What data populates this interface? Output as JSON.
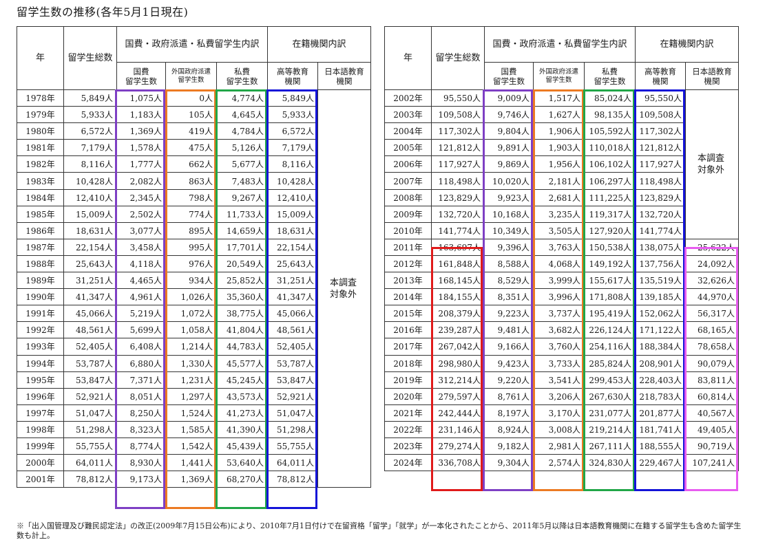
{
  "title": "留学生数の推移(各年5月1日現在)",
  "headers": {
    "year": "年",
    "total": "留学生総数",
    "breakdown": "国費・政府派遣・私費留学生内訳",
    "institution": "在籍機関内訳",
    "gov": "国費\n留学生数",
    "foreign": "外国政府派遣\n留学生数",
    "private": "私費\n留学生数",
    "higher": "高等教育\n機関",
    "japanese": "日本語教育\n機関"
  },
  "not_surveyed": "本調査\n対象外",
  "left_rows": [
    {
      "year": "1978年",
      "total": "5,849人",
      "gov": "1,075人",
      "foreign": "0人",
      "private": "4,774人",
      "higher": "5,849人"
    },
    {
      "year": "1979年",
      "total": "5,933人",
      "gov": "1,183人",
      "foreign": "105人",
      "private": "4,645人",
      "higher": "5,933人"
    },
    {
      "year": "1980年",
      "total": "6,572人",
      "gov": "1,369人",
      "foreign": "419人",
      "private": "4,784人",
      "higher": "6,572人"
    },
    {
      "year": "1981年",
      "total": "7,179人",
      "gov": "1,578人",
      "foreign": "475人",
      "private": "5,126人",
      "higher": "7,179人"
    },
    {
      "year": "1982年",
      "total": "8,116人",
      "gov": "1,777人",
      "foreign": "662人",
      "private": "5,677人",
      "higher": "8,116人"
    },
    {
      "year": "1983年",
      "total": "10,428人",
      "gov": "2,082人",
      "foreign": "863人",
      "private": "7,483人",
      "higher": "10,428人"
    },
    {
      "year": "1984年",
      "total": "12,410人",
      "gov": "2,345人",
      "foreign": "798人",
      "private": "9,267人",
      "higher": "12,410人"
    },
    {
      "year": "1985年",
      "total": "15,009人",
      "gov": "2,502人",
      "foreign": "774人",
      "private": "11,733人",
      "higher": "15,009人"
    },
    {
      "year": "1986年",
      "total": "18,631人",
      "gov": "3,077人",
      "foreign": "895人",
      "private": "14,659人",
      "higher": "18,631人"
    },
    {
      "year": "1987年",
      "total": "22,154人",
      "gov": "3,458人",
      "foreign": "995人",
      "private": "17,701人",
      "higher": "22,154人"
    },
    {
      "year": "1988年",
      "total": "25,643人",
      "gov": "4,118人",
      "foreign": "976人",
      "private": "20,549人",
      "higher": "25,643人"
    },
    {
      "year": "1989年",
      "total": "31,251人",
      "gov": "4,465人",
      "foreign": "934人",
      "private": "25,852人",
      "higher": "31,251人"
    },
    {
      "year": "1990年",
      "total": "41,347人",
      "gov": "4,961人",
      "foreign": "1,026人",
      "private": "35,360人",
      "higher": "41,347人"
    },
    {
      "year": "1991年",
      "total": "45,066人",
      "gov": "5,219人",
      "foreign": "1,072人",
      "private": "38,775人",
      "higher": "45,066人"
    },
    {
      "year": "1992年",
      "total": "48,561人",
      "gov": "5,699人",
      "foreign": "1,058人",
      "private": "41,804人",
      "higher": "48,561人"
    },
    {
      "year": "1993年",
      "total": "52,405人",
      "gov": "6,408人",
      "foreign": "1,214人",
      "private": "44,783人",
      "higher": "52,405人"
    },
    {
      "year": "1994年",
      "total": "53,787人",
      "gov": "6,880人",
      "foreign": "1,330人",
      "private": "45,577人",
      "higher": "53,787人"
    },
    {
      "year": "1995年",
      "total": "53,847人",
      "gov": "7,371人",
      "foreign": "1,231人",
      "private": "45,245人",
      "higher": "53,847人"
    },
    {
      "year": "1996年",
      "total": "52,921人",
      "gov": "8,051人",
      "foreign": "1,297人",
      "private": "43,573人",
      "higher": "52,921人"
    },
    {
      "year": "1997年",
      "total": "51,047人",
      "gov": "8,250人",
      "foreign": "1,524人",
      "private": "41,273人",
      "higher": "51,047人"
    },
    {
      "year": "1998年",
      "total": "51,298人",
      "gov": "8,323人",
      "foreign": "1,585人",
      "private": "41,390人",
      "higher": "51,298人"
    },
    {
      "year": "1999年",
      "total": "55,755人",
      "gov": "8,774人",
      "foreign": "1,542人",
      "private": "45,439人",
      "higher": "55,755人"
    },
    {
      "year": "2000年",
      "total": "64,011人",
      "gov": "8,930人",
      "foreign": "1,441人",
      "private": "53,640人",
      "higher": "64,011人"
    },
    {
      "year": "2001年",
      "total": "78,812人",
      "gov": "9,173人",
      "foreign": "1,369人",
      "private": "68,270人",
      "higher": "78,812人"
    }
  ],
  "right_rows": [
    {
      "year": "2002年",
      "total": "95,550人",
      "gov": "9,009人",
      "foreign": "1,517人",
      "private": "85,024人",
      "higher": "95,550人",
      "japanese": ""
    },
    {
      "year": "2003年",
      "total": "109,508人",
      "gov": "9,746人",
      "foreign": "1,627人",
      "private": "98,135人",
      "higher": "109,508人",
      "japanese": ""
    },
    {
      "year": "2004年",
      "total": "117,302人",
      "gov": "9,804人",
      "foreign": "1,906人",
      "private": "105,592人",
      "higher": "117,302人",
      "japanese": ""
    },
    {
      "year": "2005年",
      "total": "121,812人",
      "gov": "9,891人",
      "foreign": "1,903人",
      "private": "110,018人",
      "higher": "121,812人",
      "japanese": ""
    },
    {
      "year": "2006年",
      "total": "117,927人",
      "gov": "9,869人",
      "foreign": "1,956人",
      "private": "106,102人",
      "higher": "117,927人",
      "japanese": ""
    },
    {
      "year": "2007年",
      "total": "118,498人",
      "gov": "10,020人",
      "foreign": "2,181人",
      "private": "106,297人",
      "higher": "118,498人",
      "japanese": ""
    },
    {
      "year": "2008年",
      "total": "123,829人",
      "gov": "9,923人",
      "foreign": "2,681人",
      "private": "111,225人",
      "higher": "123,829人",
      "japanese": ""
    },
    {
      "year": "2009年",
      "total": "132,720人",
      "gov": "10,168人",
      "foreign": "3,235人",
      "private": "119,317人",
      "higher": "132,720人",
      "japanese": ""
    },
    {
      "year": "2010年",
      "total": "141,774人",
      "gov": "10,349人",
      "foreign": "3,505人",
      "private": "127,920人",
      "higher": "141,774人",
      "japanese": ""
    },
    {
      "year": "2011年",
      "total": "163,697人",
      "gov": "9,396人",
      "foreign": "3,763人",
      "private": "150,538人",
      "higher": "138,075人",
      "japanese": "25,622人"
    },
    {
      "year": "2012年",
      "total": "161,848人",
      "gov": "8,588人",
      "foreign": "4,068人",
      "private": "149,192人",
      "higher": "137,756人",
      "japanese": "24,092人"
    },
    {
      "year": "2013年",
      "total": "168,145人",
      "gov": "8,529人",
      "foreign": "3,999人",
      "private": "155,617人",
      "higher": "135,519人",
      "japanese": "32,626人"
    },
    {
      "year": "2014年",
      "total": "184,155人",
      "gov": "8,351人",
      "foreign": "3,996人",
      "private": "171,808人",
      "higher": "139,185人",
      "japanese": "44,970人"
    },
    {
      "year": "2015年",
      "total": "208,379人",
      "gov": "9,223人",
      "foreign": "3,737人",
      "private": "195,419人",
      "higher": "152,062人",
      "japanese": "56,317人"
    },
    {
      "year": "2016年",
      "total": "239,287人",
      "gov": "9,481人",
      "foreign": "3,682人",
      "private": "226,124人",
      "higher": "171,122人",
      "japanese": "68,165人"
    },
    {
      "year": "2017年",
      "total": "267,042人",
      "gov": "9,166人",
      "foreign": "3,760人",
      "private": "254,116人",
      "higher": "188,384人",
      "japanese": "78,658人"
    },
    {
      "year": "2018年",
      "total": "298,980人",
      "gov": "9,423人",
      "foreign": "3,733人",
      "private": "285,824人",
      "higher": "208,901人",
      "japanese": "90,079人"
    },
    {
      "year": "2019年",
      "total": "312,214人",
      "gov": "9,220人",
      "foreign": "3,541人",
      "private": "299,453人",
      "higher": "228,403人",
      "japanese": "83,811人"
    },
    {
      "year": "2020年",
      "total": "279,597人",
      "gov": "8,761人",
      "foreign": "3,206人",
      "private": "267,630人",
      "higher": "218,783人",
      "japanese": "60,814人"
    },
    {
      "year": "2021年",
      "total": "242,444人",
      "gov": "8,197人",
      "foreign": "3,170人",
      "private": "231,077人",
      "higher": "201,877人",
      "japanese": "40,567人"
    },
    {
      "year": "2022年",
      "total": "231,146人",
      "gov": "8,924人",
      "foreign": "3,008人",
      "private": "219,214人",
      "higher": "181,741人",
      "japanese": "49,405人"
    },
    {
      "year": "2023年",
      "total": "279,274人",
      "gov": "9,182人",
      "foreign": "2,981人",
      "private": "267,111人",
      "higher": "188,555人",
      "japanese": "90,719人"
    },
    {
      "year": "2024年",
      "total": "336,708人",
      "gov": "9,304人",
      "foreign": "2,574人",
      "private": "324,830人",
      "higher": "229,467人",
      "japanese": "107,241人"
    }
  ],
  "highlight_colors": {
    "gov": "#7e3fc4",
    "foreign": "#ec7a22",
    "private": "#21a647",
    "higher": "#1313d8",
    "total": "#e01a1a",
    "japanese": "#e85cf0"
  },
  "footnote": "※「出入国管理及び難民認定法」の改正(2009年7月15日公布)により、2010年7月1日付けで在留資格「留学」「就学」が一本化されたことから、2011年5月以降は日本語教育機関に在籍する留学生も含めた留学生数も計上。"
}
